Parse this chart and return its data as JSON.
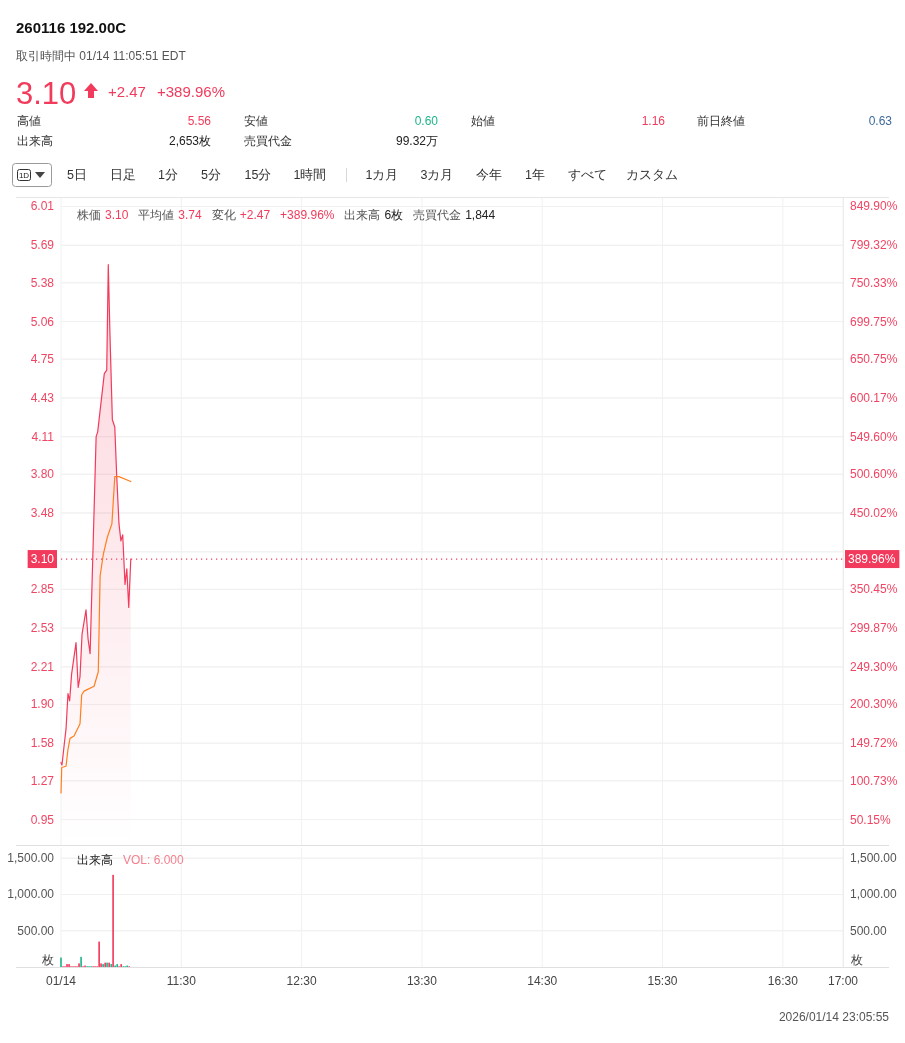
{
  "chart_data": [
    {
      "type": "other",
      "title": "260116 192.00C",
      "subtitle": "取引時間中 01/14 11:05:51 EDT",
      "annotations": [
        "3.10",
        "+2.47",
        "+389.96%",
        "高値",
        "5.56",
        "安値",
        "0.60",
        "始値",
        "1.16",
        "前日終値",
        "0.63",
        "出来高",
        "2,653枚",
        "売買代金",
        "99.32万",
        "1D",
        "5日",
        "日足",
        "1分",
        "5分",
        "15分",
        "1時間",
        "1カ月",
        "3カ月",
        "今年",
        "1年",
        "すべて",
        "カスタム"
      ]
    },
    {
      "type": "area",
      "xlim": [
        10.5,
        17
      ],
      "xticks": [
        {
          "value": 10.5,
          "label": null
        },
        {
          "value": 11.5,
          "label": null
        },
        {
          "value": 12.5,
          "label": null
        },
        {
          "value": 13.5,
          "label": null
        },
        {
          "value": 14.5,
          "label": null
        },
        {
          "value": 15.5,
          "label": null
        },
        {
          "value": 16.5,
          "label": null
        },
        {
          "value": 17,
          "label": null
        }
      ],
      "ylim": [
        0.74,
        6.08
      ],
      "yticks": [
        0.95,
        1.27,
        1.58,
        {
          "value": 1.9,
          "label": "1.90"
        },
        2.21,
        2.53,
        2.85,
        {
          "value": 3.16,
          "label": null
        },
        3.48,
        {
          "value": 3.8,
          "label": "3.80"
        },
        4.11,
        4.43,
        4.75,
        5.06,
        5.38,
        5.69,
        6.01
      ],
      "y2lim": [
        16.96,
        860.95
      ],
      "y2ticks": [
        {
          "value": 50.15,
          "label": "50.15%"
        },
        {
          "value": 100.73,
          "label": "100.73%"
        },
        {
          "value": 149.72,
          "label": "149.72%"
        },
        {
          "value": 200.3,
          "label": "200.30%"
        },
        {
          "value": 249.3,
          "label": "249.30%"
        },
        {
          "value": 299.87,
          "label": "299.87%"
        },
        {
          "value": 350.45,
          "label": "350.45%"
        },
        {
          "value": 399.45,
          "label": null
        },
        {
          "value": 450.02,
          "label": "450.02%"
        },
        {
          "value": 500.6,
          "label": "500.60%"
        },
        {
          "value": 549.6,
          "label": "549.60%"
        },
        {
          "value": 600.17,
          "label": "600.17%"
        },
        {
          "value": 650.75,
          "label": "650.75%"
        },
        {
          "value": 699.75,
          "label": "699.75%"
        },
        {
          "value": 750.33,
          "label": "750.33%"
        },
        {
          "value": 799.32,
          "label": "799.32%"
        },
        {
          "value": 849.9,
          "label": "849.90%"
        }
      ],
      "tick_labels": "y",
      "grid": true,
      "series": [
        {
          "type": "area",
          "color": "#f23b5c",
          "x": [
            10.5,
            10.508,
            10.528,
            10.542,
            10.558,
            10.572,
            10.588,
            10.625,
            10.643,
            10.658,
            10.675,
            10.708,
            10.725,
            10.742,
            10.792,
            10.805,
            10.86,
            10.88,
            10.893,
            10.907,
            10.927,
            10.947,
            10.963,
            10.982,
            10.998,
            11.013,
            11.032,
            11.047,
            11.063,
            11.08
          ],
          "values": [
            1.42,
            1.4,
            1.58,
            1.7,
            1.99,
            1.93,
            2.15,
            2.41,
            2.04,
            2.13,
            2.48,
            2.68,
            2.44,
            2.32,
            4.11,
            4.15,
            4.63,
            4.66,
            5.53,
            4.95,
            4.25,
            4.19,
            3.79,
            3.39,
            3.25,
            3.3,
            2.89,
            3.02,
            2.7,
            3.1
          ]
        },
        {
          "type": "line",
          "color": "#ff7f1e",
          "x": [
            10.5,
            10.506,
            10.542,
            10.558,
            10.575,
            10.608,
            10.643,
            10.658,
            10.672,
            10.692,
            10.713,
            10.775,
            10.81,
            10.825,
            10.852,
            10.885,
            10.923,
            10.947,
            10.982,
            11.08
          ],
          "values": [
            1.17,
            1.38,
            1.39,
            1.53,
            1.62,
            1.64,
            1.71,
            1.74,
            1.98,
            2.01,
            2.02,
            2.05,
            2.17,
            2.96,
            3.14,
            3.28,
            3.39,
            3.78,
            3.78,
            3.74
          ]
        }
      ],
      "ref_lines": [
        {
          "axis": "y",
          "value": 3.1,
          "label": "3.10",
          "color": "#f23b5c",
          "line_style": "dotted"
        }
      ],
      "annotations": [
        "株価",
        "3.10",
        "平均値",
        "3.74",
        "変化",
        "+2.47",
        "+389.96%",
        "出来高",
        "6枚",
        "売買代金",
        "1,844",
        {
          "text": "389.96%",
          "x": 17,
          "y": 3.1
        }
      ]
    },
    {
      "type": "bar",
      "x": [
        10.5,
        10.517,
        10.533,
        10.55,
        10.567,
        10.583,
        10.6,
        10.617,
        10.633,
        10.65,
        10.667,
        10.683,
        10.7,
        10.717,
        10.733,
        10.75,
        10.767,
        10.783,
        10.8,
        10.817,
        10.833,
        10.85,
        10.867,
        10.883,
        10.9,
        10.917,
        10.933,
        10.95,
        10.967,
        10.983,
        11.0,
        11.017,
        11.033,
        11.05,
        11.067
      ],
      "values": [
        130,
        10,
        10,
        40,
        40,
        10,
        10,
        10,
        10,
        50,
        140,
        10,
        20,
        10,
        10,
        10,
        10,
        10,
        10,
        350,
        50,
        40,
        60,
        60,
        60,
        40,
        1270,
        20,
        40,
        10,
        40,
        10,
        10,
        20,
        10
      ],
      "colors": [
        "#1fb58b",
        "#f23b5c",
        "#f23b5c",
        "#f23b5c",
        "#f23b5c",
        "#f23b5c",
        "#f23b5c",
        "#f23b5c",
        "#f23b5c",
        "#f23b5c",
        "#1fb58b",
        "#f23b5c",
        "#f23b5c",
        "#1fb58b",
        "#1fb58b",
        "#1fb58b",
        "#f23b5c",
        "#f23b5c",
        "#f23b5c",
        "#f23b5c",
        "#f23b5c",
        "#1fb58b",
        "#f23b5c",
        "#1fb58b",
        "#f23b5c",
        "#1fb58b",
        "#f23b5c",
        "#1fb58b",
        "#1fb58b",
        "#f23b5c",
        "#f23b5c",
        "#1fb58b",
        "#1fb58b",
        "#1fb58b",
        "#f23b5c"
      ],
      "xlim": [
        10.5,
        17
      ],
      "xticks": [
        {
          "value": 10.5,
          "label": "01/14"
        },
        {
          "value": 11.5,
          "label": "11:30"
        },
        {
          "value": 12.5,
          "label": "12:30"
        },
        {
          "value": 13.5,
          "label": "13:30"
        },
        {
          "value": 14.5,
          "label": "14:30"
        },
        {
          "value": 15.5,
          "label": "15:30"
        },
        {
          "value": 16.5,
          "label": "16:30"
        },
        {
          "value": 17,
          "label": "17:00"
        }
      ],
      "ylim": [
        0,
        1640
      ],
      "yticks": [
        {
          "value": 500,
          "label": "500.00"
        },
        {
          "value": 1000,
          "label": "1,000.00"
        },
        {
          "value": 1500,
          "label": "1,500.00"
        }
      ],
      "y2lim": [
        0,
        1640
      ],
      "y2ticks": [
        {
          "value": 500,
          "label": "500.00"
        },
        {
          "value": 1000,
          "label": "1,000.00"
        },
        {
          "value": 1500,
          "label": "1,500.00"
        }
      ],
      "ylabel": "枚",
      "y2label": "枚",
      "grid": true,
      "annotations": [
        "出来高",
        "VOL: 6.000",
        "2026/01/14 23:05:55"
      ]
    }
  ]
}
